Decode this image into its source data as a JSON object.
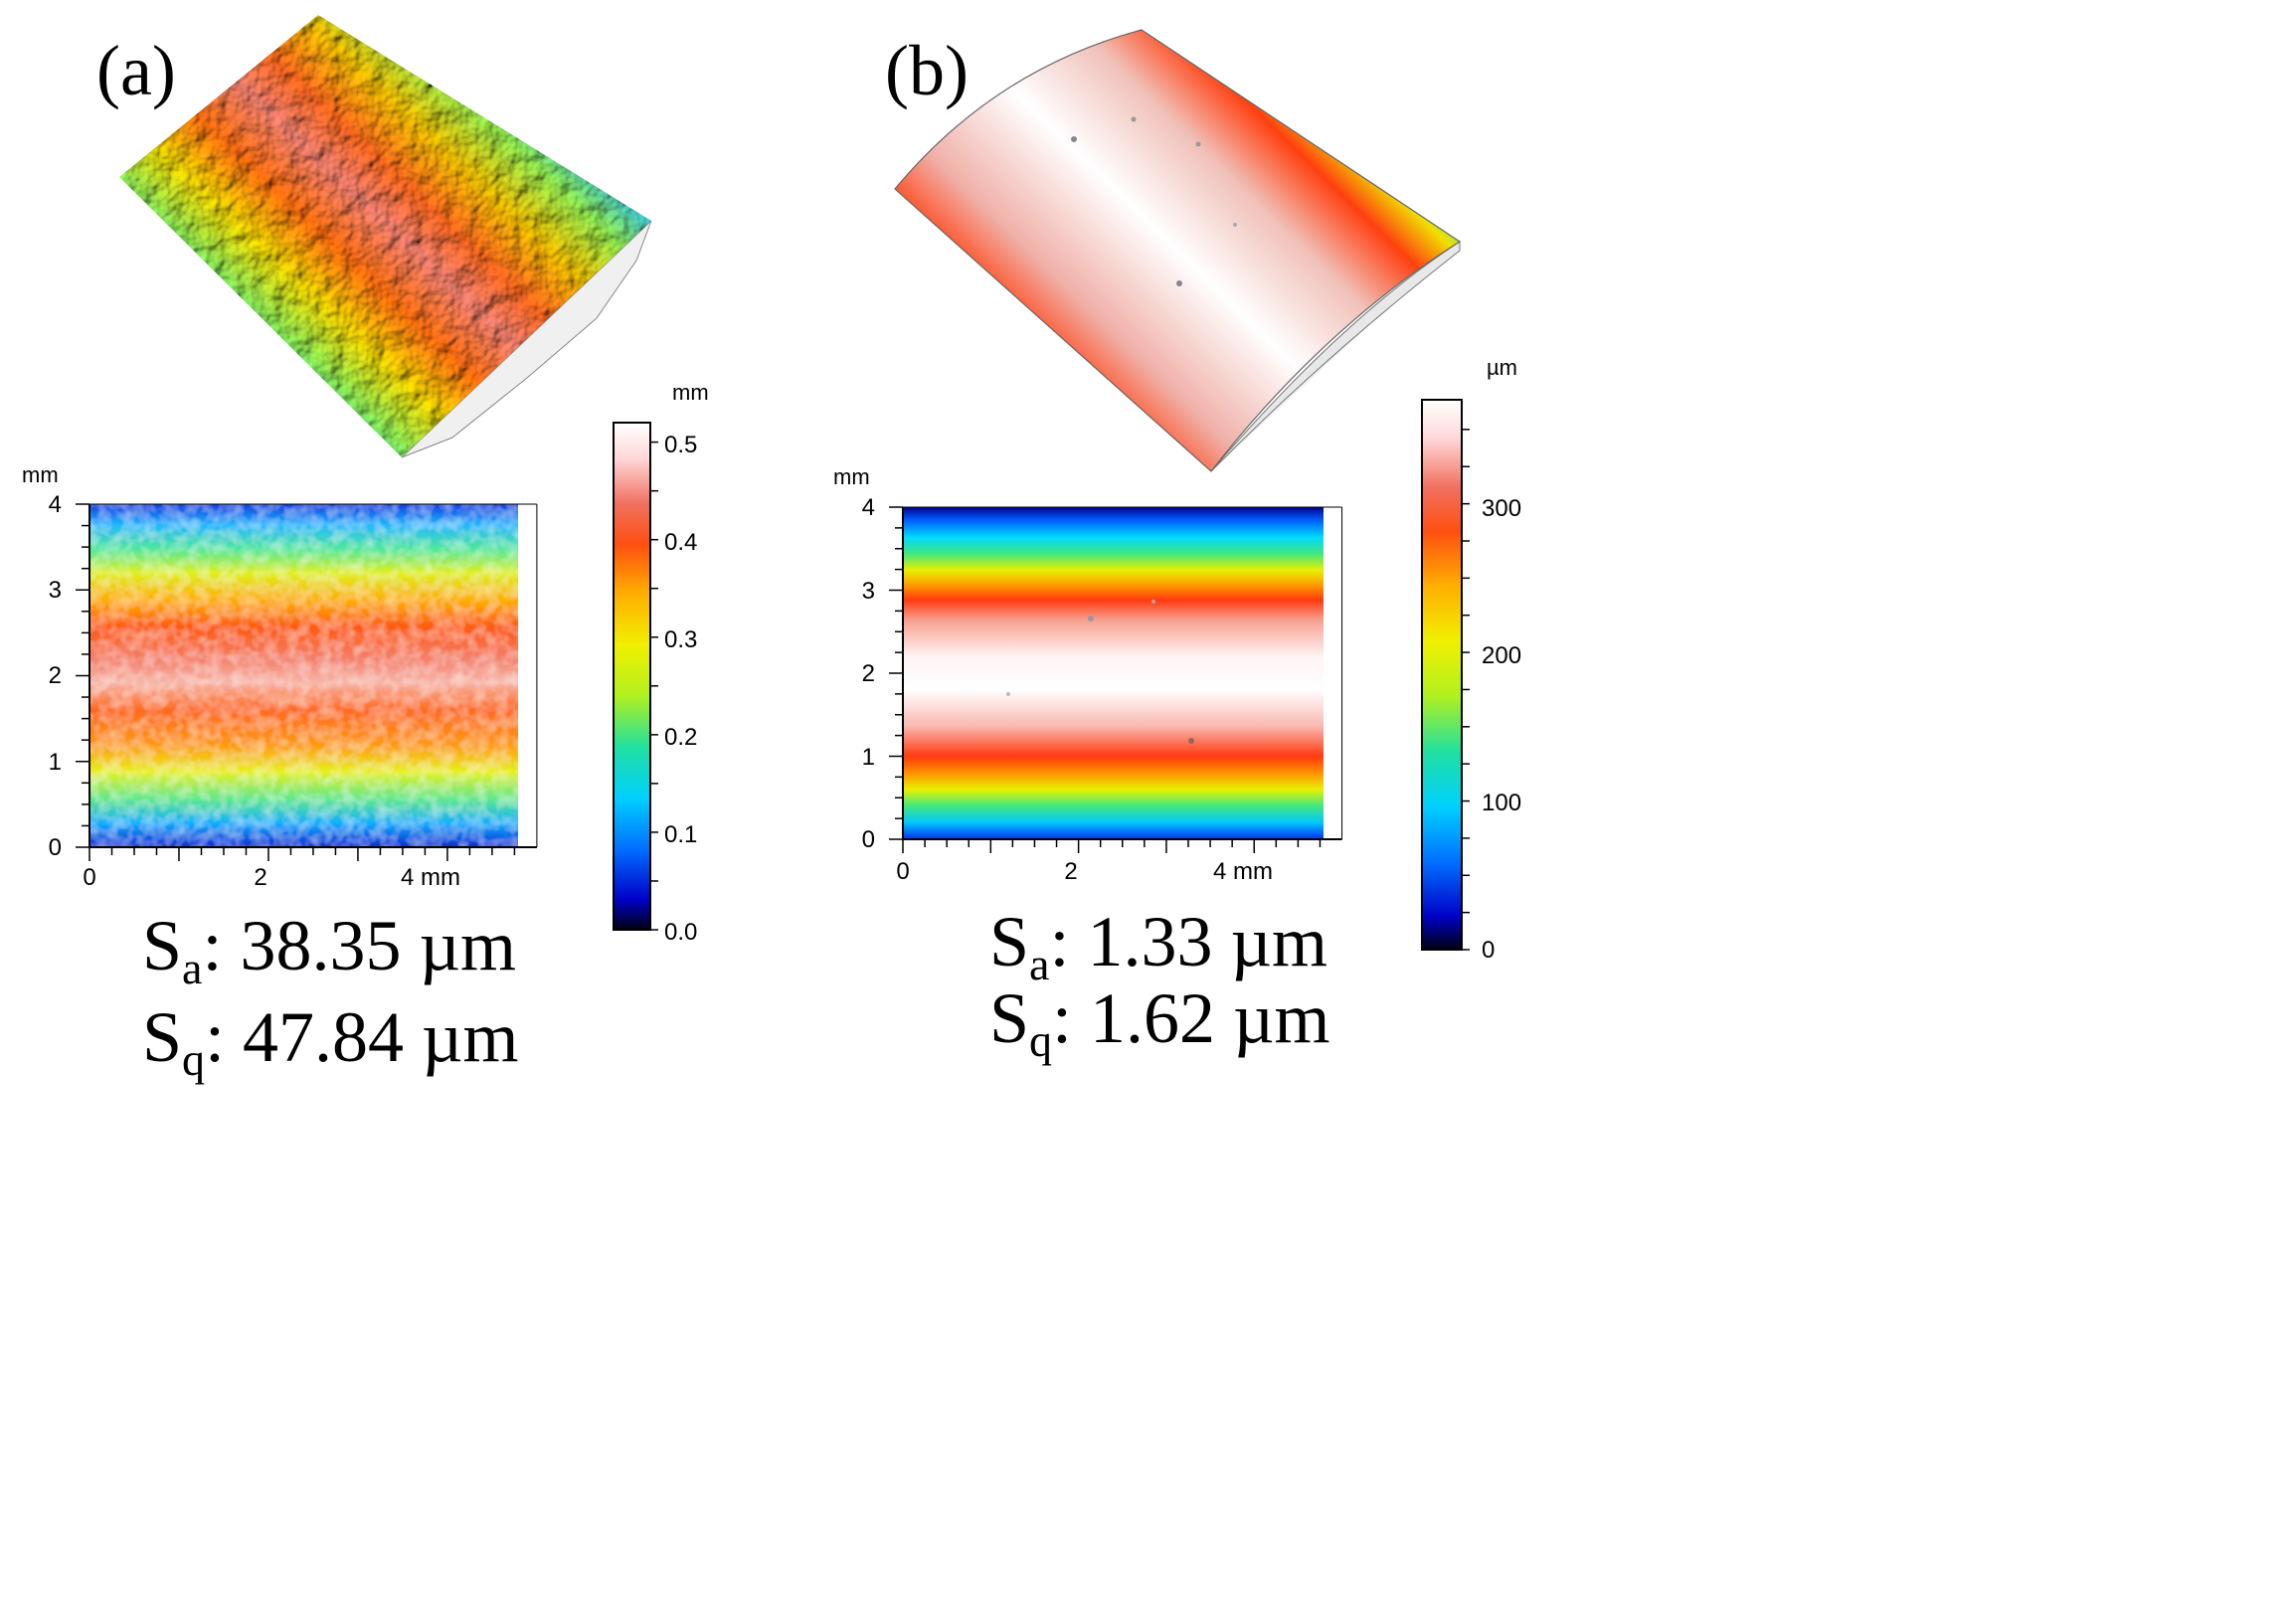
{
  "figure": {
    "panels": [
      {
        "id": "a",
        "label": "(a)",
        "view3d_name": "rough surface 3D view",
        "map": {
          "y_unit": "mm",
          "x_unit_label": "4 mm",
          "y_ticks": [
            "0",
            "1",
            "2",
            "3",
            "4"
          ],
          "x_ticks": [
            "0",
            "2"
          ],
          "x_range": [
            0,
            5
          ],
          "y_range": [
            0,
            4
          ],
          "bands_texture": "noisy"
        },
        "colorbar": {
          "unit": "mm",
          "ticks": [
            "0.0",
            "0.1",
            "0.2",
            "0.3",
            "0.4",
            "0.5"
          ],
          "range": [
            0,
            0.52
          ]
        },
        "stats": {
          "sa_label": "S",
          "sa_sub": "a",
          "sa_value": ": 38.35 µm",
          "sq_label": "S",
          "sq_sub": "q",
          "sq_value": ": 47.84 µm"
        }
      },
      {
        "id": "b",
        "label": "(b)",
        "view3d_name": "smooth cylindrical surface 3D view",
        "map": {
          "y_unit": "mm",
          "x_unit_label": "4 mm",
          "y_ticks": [
            "0",
            "1",
            "2",
            "3",
            "4"
          ],
          "x_ticks": [
            "0",
            "2"
          ],
          "x_range": [
            0,
            5
          ],
          "y_range": [
            0,
            4
          ],
          "bands_texture": "smooth"
        },
        "colorbar": {
          "unit": "µm",
          "ticks": [
            "0",
            "100",
            "200",
            "300"
          ],
          "range": [
            0,
            370
          ]
        },
        "stats": {
          "sa_label": "S",
          "sa_sub": "a",
          "sa_value": ": 1.33 µm",
          "sq_label": "S",
          "sq_sub": "q",
          "sq_value": ": 1.62 µm"
        }
      }
    ],
    "colors": {
      "scale": [
        "#000010",
        "#0000c8",
        "#0070ff",
        "#00d0ff",
        "#20e0a0",
        "#80f040",
        "#e8f000",
        "#ffc000",
        "#ff8000",
        "#ff4010",
        "#f07060",
        "#ffe0e0",
        "#ffffff"
      ],
      "axis": "#000000"
    }
  }
}
